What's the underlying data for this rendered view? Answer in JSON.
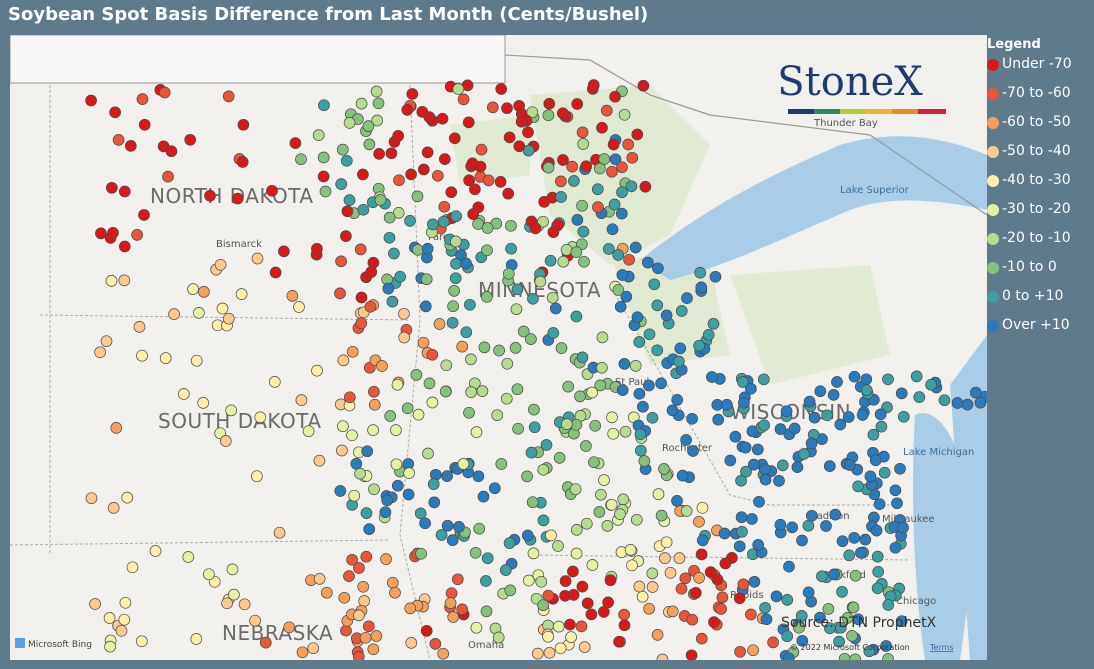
{
  "title": "Soybean Spot Basis Difference from Last Month (Cents/Bushel)",
  "legend": {
    "title": "Legend",
    "items": [
      {
        "name": "Under -70",
        "color": "#d7191c"
      },
      {
        "name": "-70 to -60",
        "color": "#e8553a"
      },
      {
        "name": "-60 to -50",
        "color": "#f4a05a"
      },
      {
        "name": "-50 to -40",
        "color": "#fcc98e"
      },
      {
        "name": "-40 to -30",
        "color": "#fdeeaa"
      },
      {
        "name": "-30 to -20",
        "color": "#e4f2a6"
      },
      {
        "name": "-20 to -10",
        "color": "#b5dc91"
      },
      {
        "name": "-10 to 0",
        "color": "#86c27e"
      },
      {
        "name": "0 to +10",
        "color": "#3f9ea0"
      },
      {
        "name": "Over +10",
        "color": "#2b7bba"
      }
    ]
  },
  "map": {
    "states": [
      "NORTH DAKOTA",
      "MINNESOTA",
      "SOUTH DAKOTA",
      "WISCONSIN",
      "NEBRASKA"
    ],
    "cities": [
      "Bismarck",
      "Fargo",
      "St Paul",
      "Rochester",
      "Madison",
      "Milwaukee",
      "Rockford",
      "Chicago",
      "Rapids",
      "Omaha",
      "Thunder Bay"
    ],
    "lakes": [
      "Lake Superior",
      "Lake Michigan"
    ],
    "logo": "StoneX",
    "source": "Source: DTN ProphetX",
    "provider": "Microsoft Bing",
    "copyright": "© 2022 Microsoft Corporation",
    "terms": "Terms"
  }
}
